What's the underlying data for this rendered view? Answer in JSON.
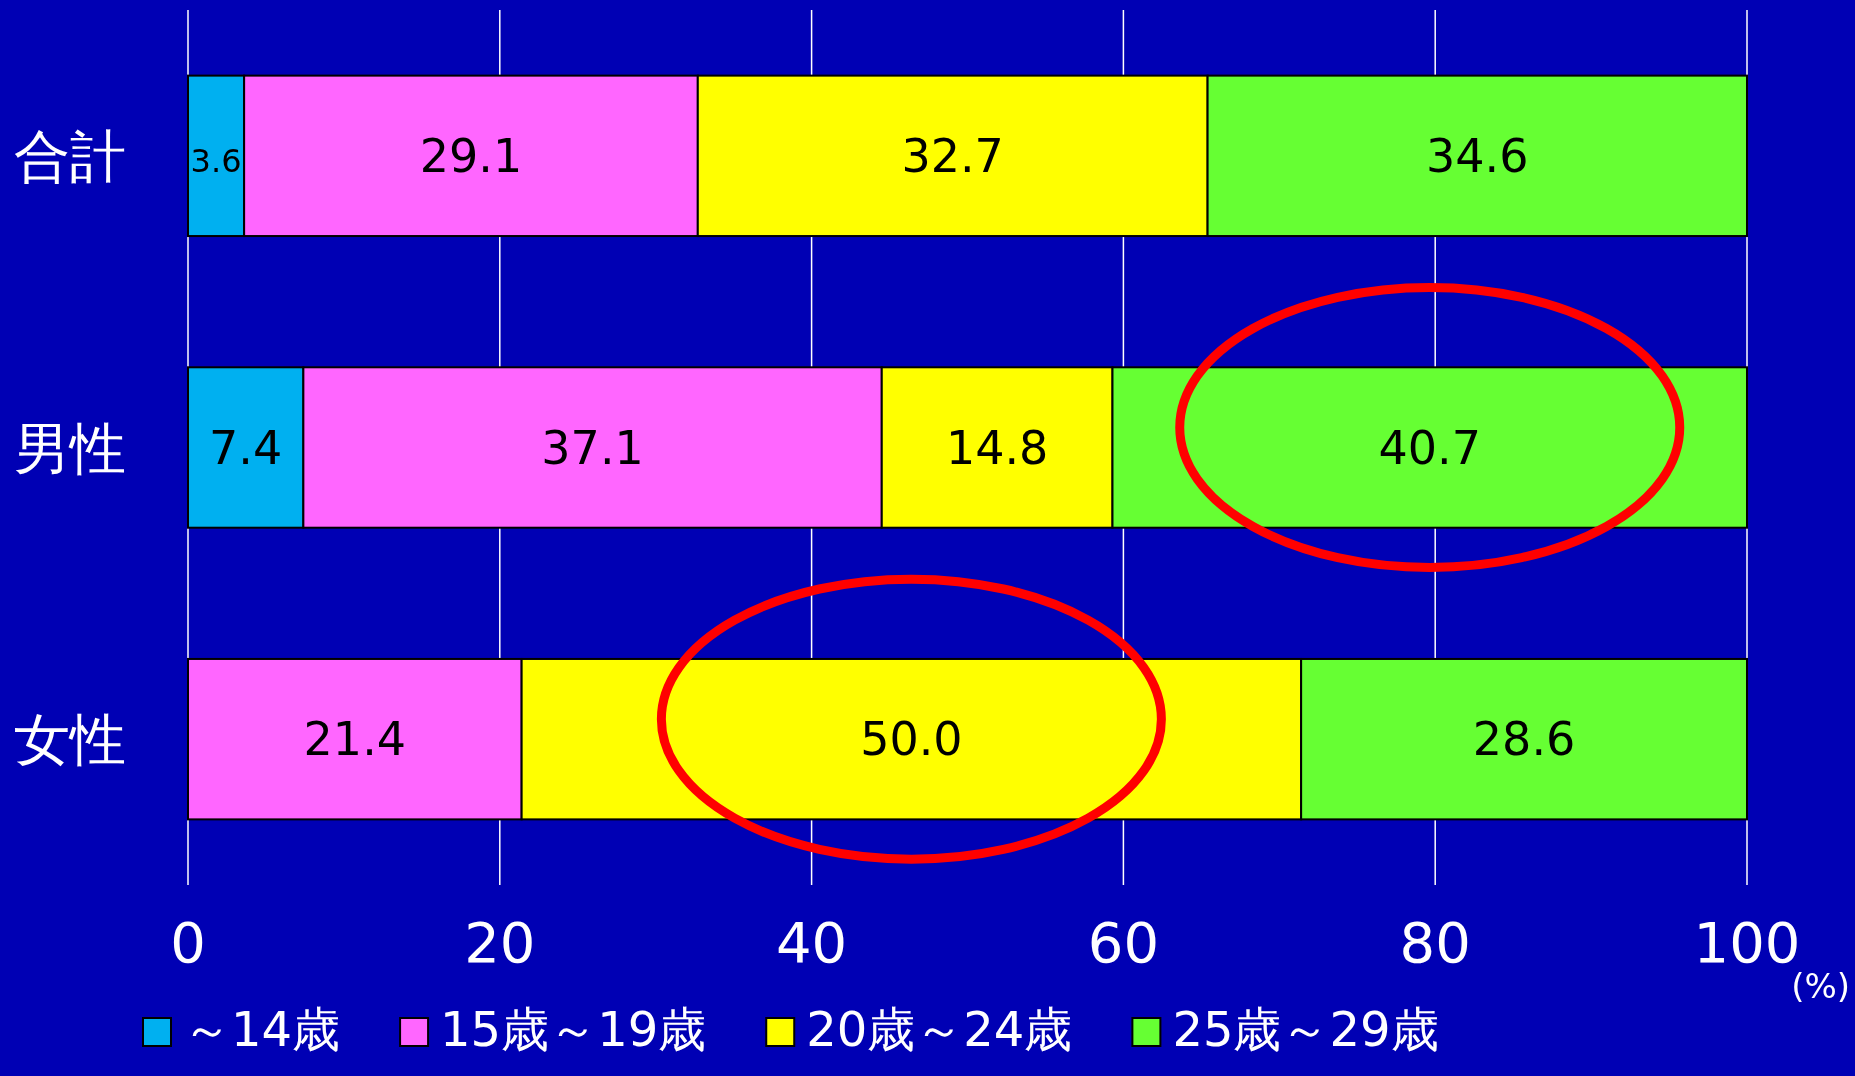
{
  "chart_data": {
    "type": "bar",
    "orientation": "horizontal",
    "stacked": true,
    "categories": [
      "合計",
      "男性",
      "女性"
    ],
    "series": [
      {
        "name": "～14歳",
        "color": "#00b0f0",
        "values": [
          3.6,
          7.4,
          null
        ],
        "value_labels": [
          "3.6",
          "7.4",
          null
        ]
      },
      {
        "name": "15歳～19歳",
        "color": "#ff66ff",
        "values": [
          29.1,
          37.1,
          21.4
        ],
        "value_labels": [
          "29.1",
          "37.1",
          "21.4"
        ]
      },
      {
        "name": "20歳～24歳",
        "color": "#ffff00",
        "values": [
          32.7,
          14.8,
          50.0
        ],
        "value_labels": [
          "32.7",
          "14.8",
          "50.0"
        ]
      },
      {
        "name": "25歳～29歳",
        "color": "#66ff33",
        "values": [
          34.6,
          40.7,
          28.6
        ],
        "value_labels": [
          "34.6",
          "40.7",
          "28.6"
        ]
      }
    ],
    "xlim": [
      0,
      100
    ],
    "xticks": [
      0,
      20,
      40,
      60,
      80,
      100
    ],
    "xlabel": "(%)",
    "grid": "x",
    "legend": "bottom"
  }
}
